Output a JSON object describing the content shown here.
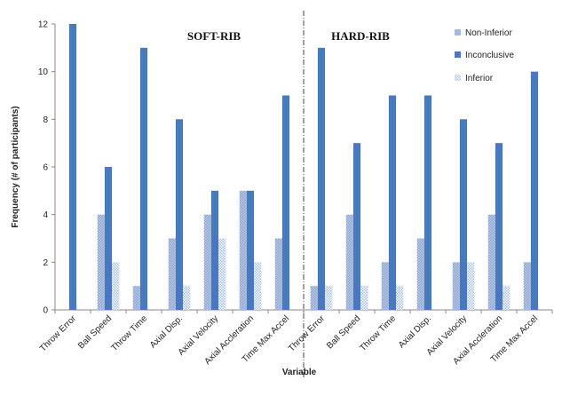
{
  "chart_data": {
    "type": "bar",
    "panels": [
      {
        "title": "SOFT-RIB"
      },
      {
        "title": "HARD-RIB"
      }
    ],
    "categories": [
      "Throw Error",
      "Ball Speed",
      "Throw Time",
      "Axial Disp.",
      "Axial Velocity",
      "Axial Accleration",
      "Time Max Accel",
      "Throw Error",
      "Ball Speed",
      "Throw Time",
      "Axial Disp.",
      "Axial Velocity",
      "Axial Accleration",
      "Time Max Accel"
    ],
    "series": [
      {
        "name": "Non-Inferior",
        "color": "#a9bfe0",
        "values": [
          0,
          4,
          1,
          3,
          4,
          5,
          3,
          1,
          4,
          2,
          3,
          2,
          4,
          2
        ]
      },
      {
        "name": "Inconclusive",
        "color": "#4a78bd",
        "values": [
          12,
          6,
          11,
          8,
          5,
          5,
          9,
          11,
          7,
          9,
          9,
          8,
          7,
          10
        ]
      },
      {
        "name": "Inferior",
        "color": "#c9d8ef",
        "values": [
          0,
          2,
          0,
          1,
          3,
          2,
          0,
          1,
          1,
          1,
          0,
          2,
          1,
          0
        ]
      }
    ],
    "ylabel": "Frequency (# of participants)",
    "xlabel": "Variable",
    "ylim": [
      0,
      12
    ],
    "yticks": [
      0,
      2,
      4,
      6,
      8,
      10,
      12
    ],
    "grid": false,
    "legend_position": "top-right"
  }
}
